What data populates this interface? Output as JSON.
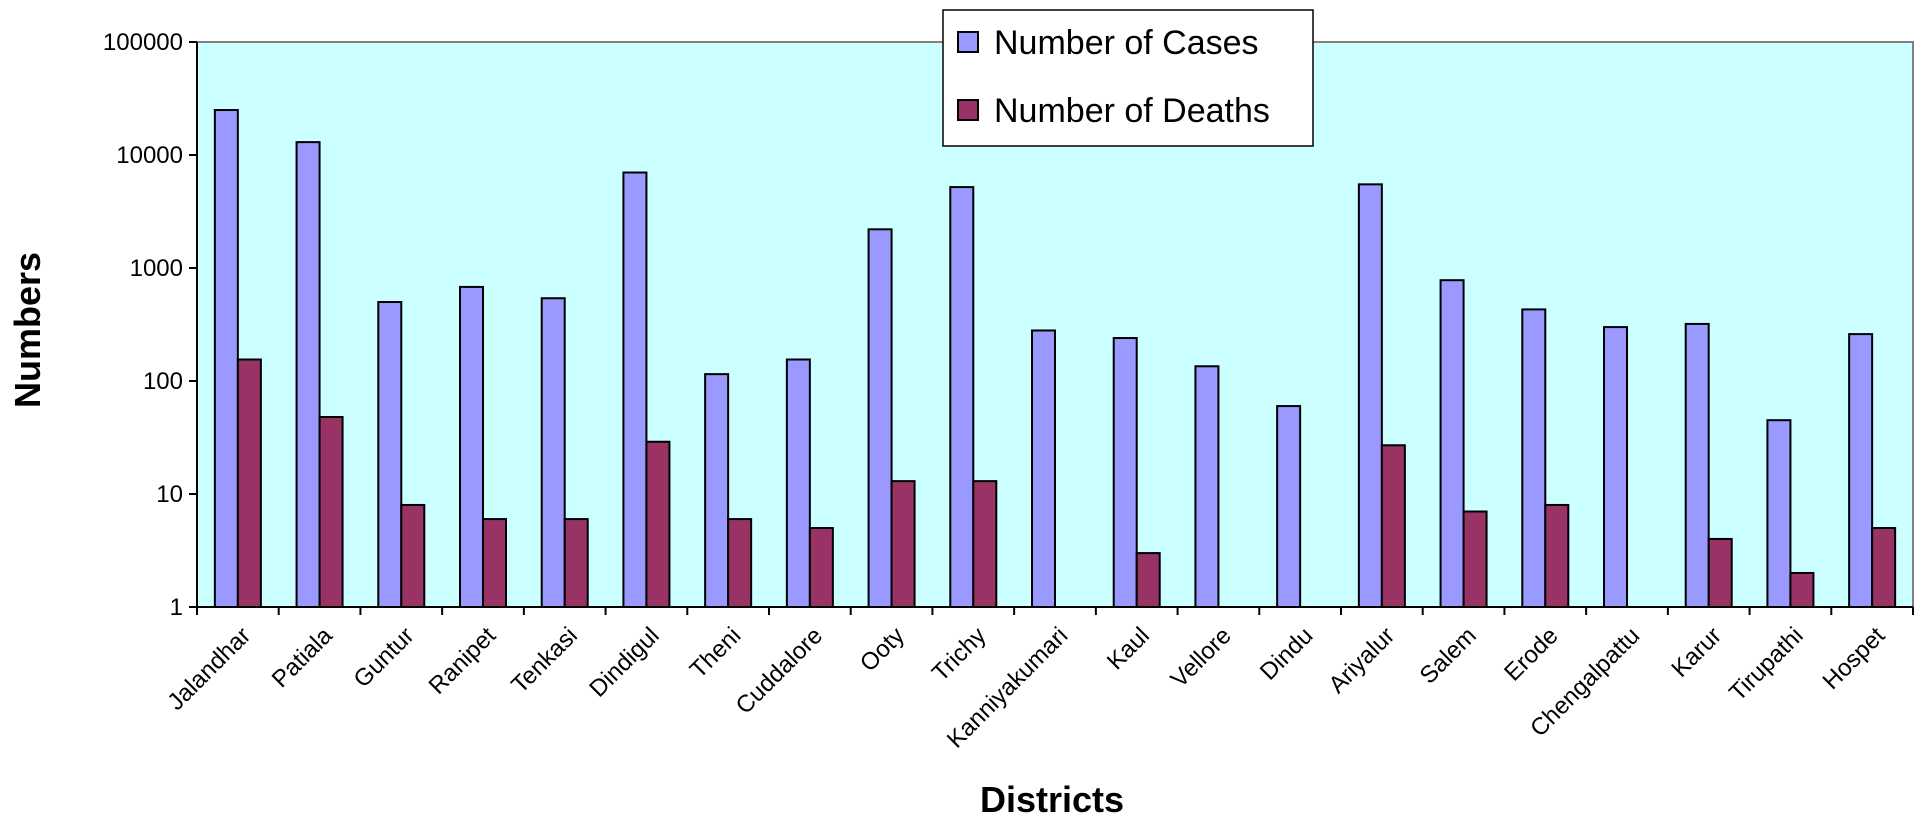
{
  "chart_data": {
    "type": "bar",
    "ylog": true,
    "ylim": [
      1,
      100000
    ],
    "yticks": [
      "1",
      "10",
      "100",
      "1000",
      "10000",
      "100000"
    ],
    "ylabel": "Numbers",
    "xlabel": "Districts",
    "legend_position": "top-center",
    "grid": false,
    "plot_background": "#ccffff",
    "categories": [
      "Jalandhar",
      "Patiala",
      "Guntur",
      "Ranipet",
      "Tenkasi",
      "Dindigul",
      "Theni",
      "Cuddalore",
      "Ooty",
      "Trichy",
      "Kanniyakumari",
      "Kaul",
      "Vellore",
      "Dindu",
      "Ariyalur",
      "Salem",
      "Erode",
      "Chengalpattu",
      "Karur",
      "Tirupathi",
      "Hospet"
    ],
    "series": [
      {
        "name": "Number of Cases",
        "color": "#9999ff",
        "values": [
          25000,
          13000,
          500,
          680,
          540,
          7000,
          115,
          155,
          2200,
          5200,
          280,
          240,
          135,
          60,
          5500,
          780,
          430,
          300,
          320,
          45,
          260
        ]
      },
      {
        "name": "Number of Deaths",
        "color": "#993366",
        "values": [
          155,
          48,
          8,
          6,
          6,
          29,
          6,
          5,
          13,
          13,
          null,
          3,
          null,
          null,
          27,
          7,
          8,
          null,
          4,
          2,
          5
        ]
      }
    ]
  }
}
